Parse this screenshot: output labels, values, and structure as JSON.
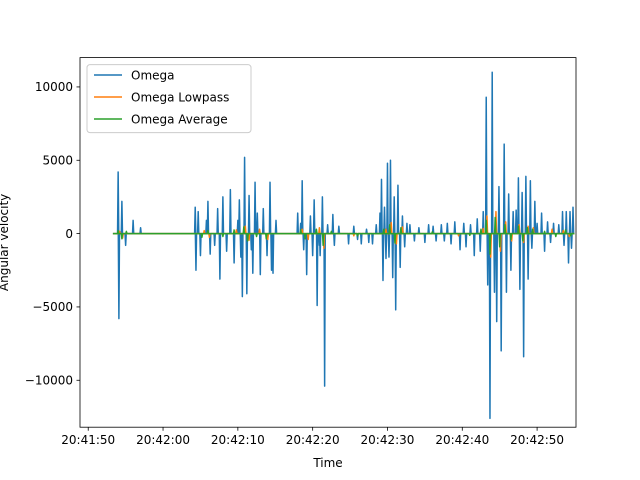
{
  "chart_data": {
    "type": "line",
    "title": "",
    "xlabel": "Time",
    "ylabel": "Angular velocity",
    "x_ticks": [
      "20:41:50",
      "20:42:00",
      "20:42:10",
      "20:42:20",
      "20:42:30",
      "20:42:40",
      "20:42:50"
    ],
    "x_tick_seconds": [
      50,
      60,
      70,
      80,
      90,
      100,
      110
    ],
    "xlim_seconds": [
      48.9,
      115.2
    ],
    "x_start_label": "20:41:53",
    "x_end_label": "20:42:55",
    "y_ticks": [
      -10000,
      -5000,
      0,
      5000,
      10000
    ],
    "ylim": [
      -13200,
      12000
    ],
    "grid": false,
    "legend_position": "top-left",
    "series": [
      {
        "name": "Omega",
        "color": "#1f77b4",
        "spikes": [
          [
            54.0,
            4200
          ],
          [
            54.1,
            -5800
          ],
          [
            54.5,
            2200
          ],
          [
            55.0,
            -800
          ],
          [
            56.0,
            900
          ],
          [
            57.0,
            400
          ],
          [
            64.3,
            1800
          ],
          [
            64.4,
            -2500
          ],
          [
            64.7,
            1500
          ],
          [
            65.0,
            -1500
          ],
          [
            65.8,
            900
          ],
          [
            66.0,
            2200
          ],
          [
            66.3,
            -1400
          ],
          [
            66.9,
            -800
          ],
          [
            67.3,
            1700
          ],
          [
            67.6,
            -3100
          ],
          [
            68.0,
            2500
          ],
          [
            68.5,
            -1200
          ],
          [
            69.0,
            3000
          ],
          [
            69.5,
            -2000
          ],
          [
            70.0,
            900
          ],
          [
            70.2,
            2300
          ],
          [
            70.4,
            -1600
          ],
          [
            70.6,
            -4300
          ],
          [
            70.9,
            5200
          ],
          [
            71.2,
            -4100
          ],
          [
            71.5,
            2600
          ],
          [
            71.8,
            -1100
          ],
          [
            72.0,
            -2700
          ],
          [
            72.3,
            3500
          ],
          [
            72.6,
            1400
          ],
          [
            73.0,
            -2800
          ],
          [
            73.4,
            1700
          ],
          [
            73.9,
            -1500
          ],
          [
            74.3,
            3500
          ],
          [
            74.5,
            -2500
          ],
          [
            74.7,
            -2700
          ],
          [
            75.1,
            900
          ],
          [
            78.0,
            1400
          ],
          [
            78.4,
            700
          ],
          [
            78.6,
            3600
          ],
          [
            78.8,
            -1100
          ],
          [
            79.2,
            -2800
          ],
          [
            79.7,
            1200
          ],
          [
            80.0,
            -1500
          ],
          [
            80.2,
            2300
          ],
          [
            80.6,
            -4900
          ],
          [
            80.9,
            -800
          ],
          [
            81.0,
            -1500
          ],
          [
            81.3,
            2500
          ],
          [
            81.6,
            -10400
          ],
          [
            82.0,
            600
          ],
          [
            82.7,
            1300
          ],
          [
            82.9,
            -800
          ],
          [
            83.5,
            500
          ],
          [
            84.8,
            -700
          ],
          [
            85.5,
            500
          ],
          [
            86.0,
            -400
          ],
          [
            86.5,
            -700
          ],
          [
            87.2,
            300
          ],
          [
            87.5,
            -600
          ],
          [
            88.0,
            -700
          ],
          [
            88.5,
            600
          ],
          [
            89.0,
            1400
          ],
          [
            89.2,
            3700
          ],
          [
            89.4,
            -3200
          ],
          [
            89.6,
            1800
          ],
          [
            89.8,
            -1700
          ],
          [
            90.0,
            4800
          ],
          [
            90.2,
            -1600
          ],
          [
            90.4,
            5000
          ],
          [
            90.7,
            -3000
          ],
          [
            90.9,
            2500
          ],
          [
            91.1,
            -5200
          ],
          [
            91.4,
            3300
          ],
          [
            91.7,
            -2300
          ],
          [
            92.0,
            1200
          ],
          [
            92.3,
            -900
          ],
          [
            92.6,
            700
          ],
          [
            93.0,
            600
          ],
          [
            93.6,
            -500
          ],
          [
            94.2,
            400
          ],
          [
            95.0,
            -600
          ],
          [
            95.5,
            600
          ],
          [
            96.1,
            500
          ],
          [
            96.5,
            -500
          ],
          [
            97.2,
            600
          ],
          [
            97.6,
            -500
          ],
          [
            98.0,
            700
          ],
          [
            98.5,
            -700
          ],
          [
            99.0,
            800
          ],
          [
            99.7,
            -1100
          ],
          [
            100.2,
            700
          ],
          [
            100.5,
            -900
          ],
          [
            101.1,
            600
          ],
          [
            101.6,
            -1500
          ],
          [
            102.0,
            1000
          ],
          [
            102.4,
            -1200
          ],
          [
            102.8,
            1500
          ],
          [
            103.2,
            9300
          ],
          [
            103.4,
            -3500
          ],
          [
            103.7,
            -12600
          ],
          [
            104.0,
            11000
          ],
          [
            104.3,
            -4000
          ],
          [
            104.6,
            -6000
          ],
          [
            104.9,
            3200
          ],
          [
            105.2,
            -8000
          ],
          [
            105.6,
            6100
          ],
          [
            105.9,
            -4000
          ],
          [
            106.2,
            2700
          ],
          [
            106.5,
            -2500
          ],
          [
            106.8,
            1500
          ],
          [
            107.2,
            1600
          ],
          [
            107.5,
            3800
          ],
          [
            107.7,
            -3800
          ],
          [
            108.0,
            2800
          ],
          [
            108.2,
            -8400
          ],
          [
            108.5,
            3900
          ],
          [
            108.8,
            -3100
          ],
          [
            109.1,
            3600
          ],
          [
            109.3,
            -1000
          ],
          [
            109.7,
            2200
          ],
          [
            110.0,
            700
          ],
          [
            110.6,
            1400
          ],
          [
            111.0,
            -1200
          ],
          [
            111.4,
            800
          ],
          [
            111.8,
            -600
          ],
          [
            112.2,
            700
          ],
          [
            112.9,
            600
          ],
          [
            113.4,
            1500
          ],
          [
            113.6,
            -800
          ],
          [
            113.9,
            1500
          ],
          [
            114.2,
            -2000
          ],
          [
            114.4,
            1500
          ],
          [
            114.6,
            -1000
          ],
          [
            114.8,
            1800
          ]
        ]
      },
      {
        "name": "Omega Lowpass",
        "color": "#ff7f0e",
        "spikes": [
          [
            54.2,
            150
          ],
          [
            54.6,
            -300
          ],
          [
            65.5,
            200
          ],
          [
            66.2,
            -250
          ],
          [
            69.8,
            250
          ],
          [
            71.0,
            500
          ],
          [
            71.5,
            -450
          ],
          [
            72.9,
            300
          ],
          [
            74.0,
            -400
          ],
          [
            78.6,
            300
          ],
          [
            79.4,
            -400
          ],
          [
            80.9,
            400
          ],
          [
            81.5,
            -1000
          ],
          [
            85.5,
            -150
          ],
          [
            89.8,
            300
          ],
          [
            90.5,
            750
          ],
          [
            91.2,
            -700
          ],
          [
            92.0,
            450
          ],
          [
            99.5,
            -150
          ],
          [
            102.8,
            350
          ],
          [
            103.3,
            1200
          ],
          [
            103.8,
            -1600
          ],
          [
            104.5,
            1500
          ],
          [
            105.1,
            -1200
          ],
          [
            105.8,
            800
          ],
          [
            106.6,
            -500
          ],
          [
            107.6,
            600
          ],
          [
            108.2,
            -600
          ],
          [
            108.8,
            500
          ],
          [
            109.5,
            400
          ],
          [
            112.0,
            300
          ],
          [
            113.5,
            200
          ],
          [
            114.3,
            -200
          ]
        ]
      },
      {
        "name": "Omega Average",
        "color": "#2ca02c",
        "spikes": [
          [
            54.0,
            200
          ],
          [
            54.5,
            -350
          ],
          [
            55.1,
            150
          ],
          [
            65.2,
            -250
          ],
          [
            66.0,
            200
          ],
          [
            68.0,
            -200
          ],
          [
            69.5,
            250
          ],
          [
            70.8,
            450
          ],
          [
            71.3,
            -500
          ],
          [
            72.5,
            -200
          ],
          [
            73.8,
            -350
          ],
          [
            78.4,
            250
          ],
          [
            79.0,
            -350
          ],
          [
            80.5,
            300
          ],
          [
            81.4,
            -800
          ],
          [
            82.5,
            150
          ],
          [
            86.0,
            -150
          ],
          [
            89.5,
            300
          ],
          [
            90.3,
            600
          ],
          [
            91.0,
            -650
          ],
          [
            91.8,
            400
          ],
          [
            96.0,
            120
          ],
          [
            101.0,
            -120
          ],
          [
            102.5,
            300
          ],
          [
            103.2,
            900
          ],
          [
            103.7,
            -1400
          ],
          [
            104.4,
            1100
          ],
          [
            105.0,
            -900
          ],
          [
            105.7,
            600
          ],
          [
            106.5,
            -400
          ],
          [
            107.5,
            500
          ],
          [
            108.1,
            -500
          ],
          [
            108.7,
            400
          ],
          [
            109.4,
            300
          ],
          [
            111.0,
            150
          ],
          [
            112.5,
            -200
          ],
          [
            113.8,
            250
          ],
          [
            114.5,
            -150
          ]
        ]
      }
    ]
  }
}
